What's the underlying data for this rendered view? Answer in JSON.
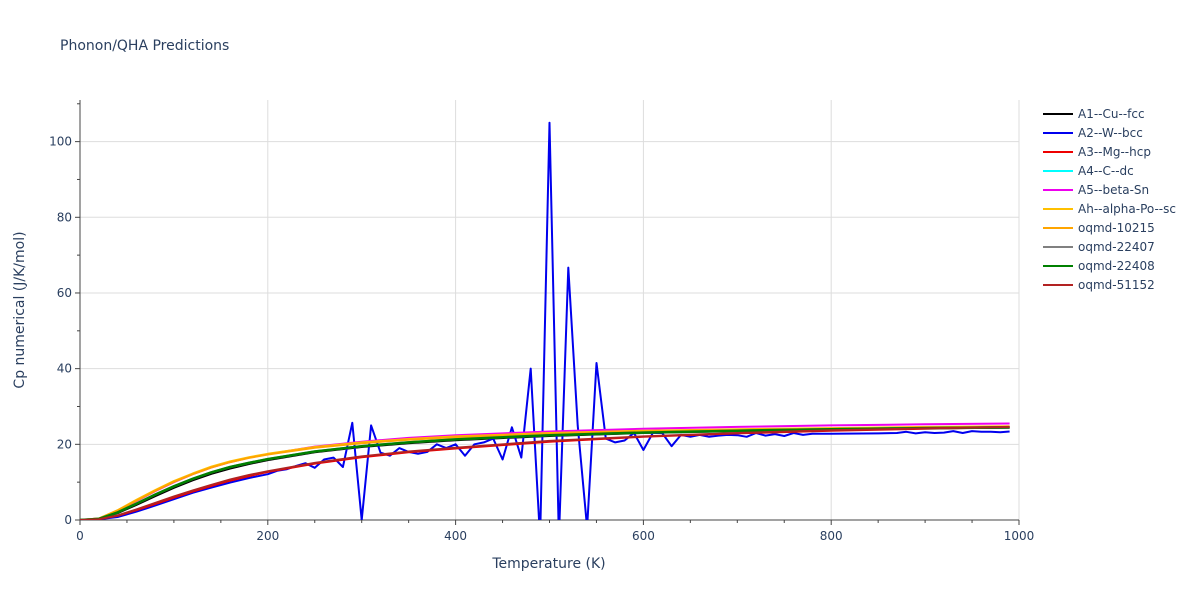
{
  "chart_data": {
    "type": "line",
    "title": "Phonon/QHA Predictions",
    "xlabel": "Temperature (K)",
    "ylabel": "Cp numerical (J/K/mol)",
    "xlim": [
      0,
      1000
    ],
    "ylim": [
      0,
      111
    ],
    "xticks": [
      0,
      200,
      400,
      600,
      800,
      1000
    ],
    "yticks": [
      0,
      20,
      40,
      60,
      80,
      100
    ],
    "grid": true,
    "legend_position": "right",
    "series": [
      {
        "name": "A1--Cu--fcc",
        "color": "#000000",
        "x": [
          0,
          20,
          40,
          60,
          80,
          100,
          120,
          140,
          160,
          180,
          200,
          250,
          300,
          350,
          400,
          500,
          600,
          700,
          800,
          900,
          990
        ],
        "y": [
          0,
          0.3,
          1.8,
          4.0,
          6.3,
          8.5,
          10.5,
          12.2,
          13.6,
          14.8,
          15.8,
          17.9,
          19.3,
          20.3,
          21.1,
          22.2,
          23.0,
          23.5,
          23.9,
          24.2,
          24.4
        ]
      },
      {
        "name": "A2--W--bcc",
        "color": "#0000ee",
        "x": [
          0,
          20,
          40,
          60,
          80,
          100,
          120,
          140,
          160,
          180,
          200,
          210,
          220,
          230,
          240,
          250,
          260,
          270,
          280,
          290,
          300,
          310,
          320,
          330,
          340,
          350,
          360,
          370,
          380,
          390,
          400,
          410,
          420,
          430,
          440,
          450,
          460,
          470,
          480,
          490,
          500,
          510,
          520,
          530,
          540,
          550,
          560,
          570,
          580,
          590,
          600,
          610,
          620,
          630,
          640,
          650,
          660,
          670,
          680,
          690,
          700,
          710,
          720,
          730,
          740,
          750,
          760,
          770,
          780,
          790,
          800,
          850,
          870,
          880,
          890,
          900,
          910,
          920,
          930,
          940,
          950,
          960,
          970,
          980,
          990
        ],
        "y": [
          0,
          0.2,
          0.8,
          2.2,
          3.8,
          5.5,
          7.2,
          8.6,
          9.9,
          11.1,
          12.1,
          13.0,
          13.4,
          14.3,
          15.0,
          13.8,
          16.0,
          16.5,
          14.0,
          25.7,
          0.0,
          25.0,
          17.8,
          17.0,
          19.0,
          18.0,
          17.5,
          18.0,
          20.0,
          19.0,
          20.0,
          17.0,
          20.0,
          20.5,
          21.5,
          16.0,
          24.5,
          16.5,
          40.0,
          -5.0,
          105.0,
          -5.0,
          66.7,
          25.0,
          -2.0,
          41.5,
          21.5,
          20.5,
          21.0,
          23.0,
          18.5,
          23.0,
          23.0,
          19.5,
          22.5,
          22.0,
          22.5,
          22.0,
          22.3,
          22.5,
          22.4,
          22.0,
          23.0,
          22.3,
          22.7,
          22.2,
          23.0,
          22.5,
          22.8,
          22.8,
          22.8,
          22.9,
          23.0,
          23.3,
          22.9,
          23.2,
          23.0,
          23.1,
          23.5,
          23.0,
          23.5,
          23.3,
          23.3,
          23.2,
          23.4
        ]
      },
      {
        "name": "A3--Mg--hcp",
        "color": "#ee0000",
        "x": [
          0,
          20,
          40,
          60,
          80,
          100,
          120,
          140,
          160,
          180,
          200,
          250,
          300,
          350,
          400,
          500,
          600,
          700,
          800,
          900,
          990
        ],
        "y": [
          0,
          0.2,
          1.1,
          2.6,
          4.2,
          5.9,
          7.5,
          9.0,
          10.4,
          11.6,
          12.7,
          14.9,
          16.6,
          17.9,
          18.9,
          20.7,
          22.0,
          22.9,
          23.6,
          24.1,
          24.5
        ]
      },
      {
        "name": "A4--C--dc",
        "color": "#00ffff",
        "x": [],
        "y": []
      },
      {
        "name": "A5--beta-Sn",
        "color": "#ee00ee",
        "x": [
          0,
          20,
          40,
          60,
          80,
          100,
          120,
          140,
          160,
          180,
          200,
          250,
          300,
          350,
          400,
          500,
          600,
          700,
          800,
          900,
          990
        ],
        "y": [
          0,
          0.4,
          2.4,
          5.0,
          7.6,
          10.0,
          12.1,
          13.9,
          15.3,
          16.5,
          17.4,
          19.4,
          20.7,
          21.7,
          22.4,
          23.4,
          24.1,
          24.6,
          25.0,
          25.3,
          25.5
        ]
      },
      {
        "name": "Ah--alpha-Po--sc",
        "color": "#ffc000",
        "x": [
          0,
          20,
          40,
          60,
          80,
          100,
          120,
          140,
          160,
          180,
          200,
          250,
          300,
          350,
          400,
          500,
          600,
          700,
          800,
          900,
          990
        ],
        "y": [
          0,
          0.4,
          2.6,
          5.3,
          7.9,
          10.3,
          12.3,
          14.1,
          15.5,
          16.6,
          17.5,
          19.3,
          20.5,
          21.4,
          22.1,
          23.0,
          23.6,
          24.0,
          24.3,
          24.6,
          24.8
        ]
      },
      {
        "name": "oqmd-10215",
        "color": "#ffa500",
        "x": [
          0,
          20,
          40,
          60,
          80,
          100,
          120,
          140,
          160,
          180,
          200,
          250,
          300,
          350,
          400,
          500,
          600,
          700,
          800,
          900,
          990
        ],
        "y": [
          0,
          0.4,
          2.5,
          5.1,
          7.7,
          10.1,
          12.1,
          13.9,
          15.3,
          16.4,
          17.3,
          19.1,
          20.3,
          21.2,
          21.9,
          22.8,
          23.4,
          23.8,
          24.1,
          24.4,
          24.6
        ]
      },
      {
        "name": "oqmd-22407",
        "color": "#808080",
        "x": [
          0,
          20,
          40,
          60,
          80,
          100,
          120,
          140,
          160,
          180,
          200,
          250,
          300,
          350,
          400,
          500,
          600,
          700,
          800,
          900,
          990
        ],
        "y": [
          0,
          0.3,
          2.0,
          4.3,
          6.7,
          8.9,
          10.9,
          12.6,
          14.0,
          15.1,
          16.1,
          18.1,
          19.5,
          20.5,
          21.3,
          22.4,
          23.1,
          23.6,
          24.0,
          24.3,
          24.5
        ]
      },
      {
        "name": "oqmd-22408",
        "color": "#008000",
        "x": [
          0,
          20,
          40,
          60,
          80,
          100,
          120,
          140,
          160,
          180,
          200,
          250,
          300,
          350,
          400,
          500,
          600,
          700,
          800,
          900,
          990
        ],
        "y": [
          0,
          0.3,
          2.0,
          4.3,
          6.7,
          8.9,
          10.9,
          12.6,
          14.0,
          15.1,
          16.1,
          18.1,
          19.5,
          20.5,
          21.3,
          22.4,
          23.1,
          23.6,
          24.0,
          24.3,
          24.5
        ]
      },
      {
        "name": "oqmd-51152",
        "color": "#b22222",
        "x": [
          0,
          20,
          40,
          60,
          80,
          100,
          120,
          140,
          160,
          180,
          200,
          250,
          300,
          350,
          400,
          500,
          600,
          700,
          800,
          900,
          990
        ],
        "y": [
          0,
          0.2,
          1.2,
          2.8,
          4.5,
          6.2,
          7.8,
          9.3,
          10.7,
          11.9,
          12.9,
          15.1,
          16.8,
          18.1,
          19.1,
          20.9,
          22.1,
          23.0,
          23.7,
          24.2,
          24.6
        ]
      }
    ]
  }
}
